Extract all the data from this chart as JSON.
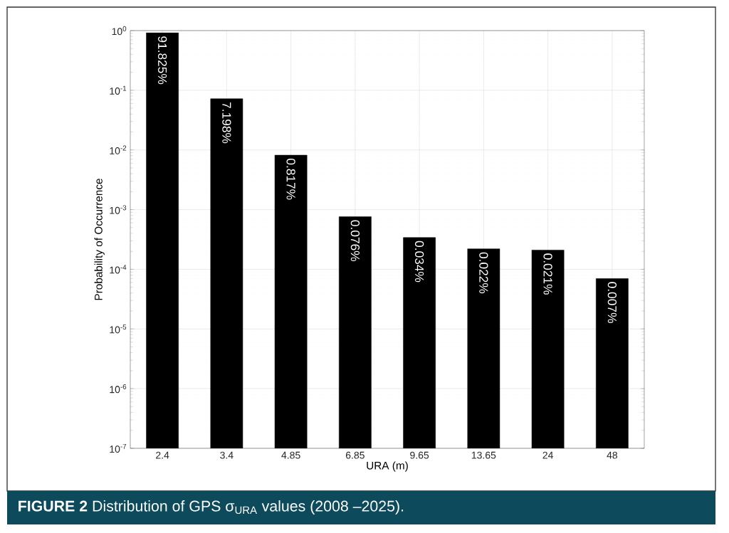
{
  "chart_data": {
    "type": "bar",
    "xlabel": "URA (m)",
    "ylabel": "Probability of Occurrence",
    "categories": [
      "2.4",
      "3.4",
      "4.85",
      "6.85",
      "9.65",
      "13.65",
      "24",
      "48"
    ],
    "values": [
      0.91825,
      0.07198,
      0.00817,
      0.00076,
      0.00034,
      0.00022,
      0.00021,
      7e-05
    ],
    "value_labels": [
      "91.825%",
      "7.198%",
      "0.817%",
      "0.076%",
      "0.034%",
      "0.022%",
      "0.021%",
      "0.007%"
    ],
    "color": "#000000",
    "log": "y",
    "grid": true,
    "ylim": [
      1e-07,
      1
    ],
    "yticks": [
      {
        "value": 1e-07,
        "label": "10$^{-7}$"
      },
      {
        "value": 1e-06,
        "label": "10$^{-6}$"
      },
      {
        "value": 1e-05,
        "label": "10$^{-5}$"
      },
      {
        "value": 0.0001,
        "label": "10$^{-4}$"
      },
      {
        "value": 0.001,
        "label": "10$^{-3}$"
      },
      {
        "value": 0.01,
        "label": "10$^{-2}$"
      },
      {
        "value": 0.1,
        "label": "10$^{-1}$"
      },
      {
        "value": 1,
        "label": "10$^{0}$"
      }
    ],
    "annotations": [
      "**FIGURE 2**  Distribution of GPS σ$_{URA}$ values (2008 –2025)."
    ]
  }
}
